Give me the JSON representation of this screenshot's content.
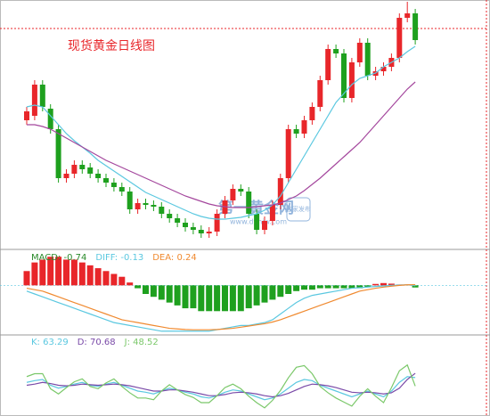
{
  "chart_data": [
    {
      "type": "candlestick",
      "title": "现货黄金日线图",
      "open": [
        145,
        150,
        185,
        158,
        135,
        80,
        85,
        95,
        92,
        85,
        80,
        75,
        70,
        65,
        45,
        52,
        50,
        48,
        40,
        35,
        30,
        25,
        22,
        18,
        20,
        40,
        55,
        68,
        65,
        40,
        22,
        32,
        50,
        80,
        135,
        130,
        145,
        160,
        190,
        225,
        220,
        170,
        210,
        232,
        195,
        200,
        205,
        215,
        260,
        265
      ],
      "high": [
        160,
        190,
        190,
        163,
        140,
        90,
        100,
        100,
        97,
        90,
        85,
        80,
        75,
        70,
        57,
        57,
        55,
        53,
        45,
        40,
        35,
        30,
        27,
        25,
        45,
        60,
        73,
        73,
        70,
        45,
        37,
        55,
        85,
        140,
        140,
        150,
        165,
        195,
        230,
        230,
        225,
        215,
        237,
        237,
        205,
        210,
        220,
        265,
        278,
        270
      ],
      "low": [
        140,
        145,
        155,
        130,
        75,
        75,
        80,
        85,
        80,
        75,
        70,
        65,
        60,
        40,
        40,
        45,
        43,
        35,
        30,
        25,
        20,
        17,
        13,
        13,
        15,
        35,
        50,
        60,
        35,
        17,
        17,
        27,
        45,
        75,
        125,
        125,
        140,
        155,
        185,
        215,
        165,
        165,
        205,
        190,
        190,
        195,
        200,
        210,
        255,
        230
      ],
      "close": [
        155,
        185,
        160,
        135,
        80,
        85,
        95,
        90,
        85,
        80,
        75,
        70,
        65,
        45,
        52,
        50,
        48,
        40,
        35,
        30,
        25,
        22,
        18,
        20,
        40,
        55,
        68,
        65,
        40,
        22,
        32,
        50,
        80,
        135,
        130,
        145,
        160,
        190,
        225,
        220,
        170,
        210,
        232,
        195,
        200,
        205,
        215,
        260,
        265,
        235
      ],
      "up_color": "#e8262a",
      "down_color": "#1ea01e",
      "lines": [
        {
          "color": "#5bc8e0",
          "values": [
            160,
            162,
            160,
            150,
            140,
            130,
            122,
            115,
            108,
            100,
            94,
            88,
            82,
            76,
            70,
            64,
            60,
            56,
            52,
            48,
            44,
            40,
            37,
            35,
            34,
            34,
            35,
            36,
            38,
            40,
            44,
            50,
            60,
            75,
            90,
            105,
            120,
            135,
            150,
            165,
            175,
            185,
            192,
            195,
            198,
            205,
            210,
            215,
            222,
            228
          ]
        },
        {
          "color": "#a4479d",
          "values": [
            140,
            140,
            138,
            135,
            130,
            125,
            120,
            115,
            110,
            105,
            100,
            96,
            92,
            88,
            84,
            80,
            76,
            72,
            68,
            64,
            60,
            57,
            54,
            51,
            49,
            48,
            47,
            47,
            47,
            48,
            49,
            50,
            52,
            56,
            60,
            66,
            73,
            80,
            88,
            96,
            104,
            112,
            120,
            130,
            140,
            150,
            160,
            170,
            180,
            188
          ]
        }
      ],
      "ref_line": 248,
      "ref_color": "#e8262a",
      "ylim": [
        0,
        280
      ],
      "watermark": {
        "name": "第一黄金网",
        "url": "www.dyhjw.com",
        "badge": "独家发布"
      }
    },
    {
      "type": "macd",
      "values": [
        5,
        8,
        9,
        10,
        10,
        9,
        9,
        8,
        7,
        6,
        5,
        4,
        3,
        1,
        -1,
        -3,
        -4,
        -5,
        -6,
        -7,
        -8,
        -8,
        -9,
        -9,
        -9,
        -9,
        -9,
        -9,
        -8,
        -7,
        -6,
        -5,
        -4,
        -3,
        -2,
        -1.5,
        -1.5,
        -1,
        -1,
        -1,
        -1,
        -1,
        -1,
        -0.5,
        0.5,
        0.8,
        0.6,
        0.3,
        0.3,
        -0.74
      ],
      "name": "MACD: -0.74",
      "label_color": "#2a8a2a",
      "up_color": "#e8262a",
      "down_color": "#1ea01e",
      "series": [
        {
          "name": "DIFF: -0.13",
          "color": "#5bc8e0",
          "values": [
            -2,
            -3,
            -4,
            -5,
            -6,
            -7,
            -8,
            -9,
            -10,
            -11,
            -12,
            -13,
            -13.5,
            -14,
            -14.5,
            -15,
            -15.5,
            -16,
            -16,
            -16,
            -16,
            -16,
            -16,
            -16,
            -15.5,
            -15,
            -14.5,
            -14,
            -14,
            -13.5,
            -13,
            -12,
            -10,
            -8,
            -6,
            -4.5,
            -3.5,
            -3,
            -2.5,
            -2,
            -1.5,
            -1,
            -0.8,
            -0.6,
            -0.4,
            -0.2,
            0,
            0.1,
            0.2,
            -0.13
          ]
        },
        {
          "name": "DEA: 0.24",
          "color": "#f08a30",
          "values": [
            -1,
            -1.5,
            -2,
            -3,
            -4,
            -5,
            -6,
            -7,
            -8,
            -9,
            -10,
            -11,
            -12,
            -12.5,
            -13,
            -13.5,
            -14,
            -14.5,
            -15,
            -15.2,
            -15.4,
            -15.5,
            -15.5,
            -15.5,
            -15.4,
            -15.2,
            -15,
            -14.6,
            -14.2,
            -13.8,
            -13.4,
            -12.8,
            -12,
            -11,
            -10,
            -9,
            -8,
            -7,
            -6,
            -5,
            -4,
            -3,
            -2,
            -1.5,
            -1,
            -0.6,
            -0.3,
            0,
            0.2,
            0.24
          ]
        }
      ],
      "ylim": [
        -17,
        11
      ]
    },
    {
      "type": "line",
      "series": [
        {
          "name": "K: 63.29",
          "color": "#5bc8e0",
          "values": [
            55,
            58,
            60,
            50,
            45,
            48,
            52,
            55,
            50,
            48,
            52,
            55,
            50,
            45,
            40,
            38,
            35,
            40,
            45,
            42,
            38,
            35,
            30,
            28,
            32,
            38,
            42,
            40,
            35,
            30,
            25,
            28,
            35,
            45,
            55,
            60,
            58,
            50,
            45,
            40,
            35,
            30,
            35,
            40,
            35,
            30,
            40,
            55,
            65,
            63.29
          ]
        },
        {
          "name": "D: 70.68",
          "color": "#7a4aa8",
          "values": [
            50,
            52,
            55,
            53,
            50,
            49,
            50,
            52,
            51,
            50,
            51,
            52,
            51,
            49,
            46,
            43,
            40,
            40,
            42,
            42,
            40,
            38,
            35,
            32,
            32,
            34,
            37,
            38,
            37,
            35,
            32,
            30,
            32,
            36,
            42,
            48,
            52,
            51,
            49,
            46,
            42,
            38,
            37,
            38,
            37,
            35,
            37,
            45,
            60,
            70.68
          ]
        },
        {
          "name": "J: 48.52",
          "color": "#7bc86a",
          "values": [
            65,
            70,
            70,
            44,
            35,
            46,
            56,
            61,
            48,
            44,
            54,
            61,
            48,
            37,
            28,
            28,
            25,
            40,
            51,
            42,
            34,
            29,
            20,
            20,
            32,
            46,
            52,
            44,
            31,
            20,
            11,
            24,
            41,
            63,
            81,
            84,
            70,
            48,
            37,
            28,
            21,
            14,
            31,
            44,
            31,
            20,
            46,
            75,
            85,
            48.52
          ]
        }
      ],
      "ylim": [
        0,
        100
      ]
    }
  ]
}
